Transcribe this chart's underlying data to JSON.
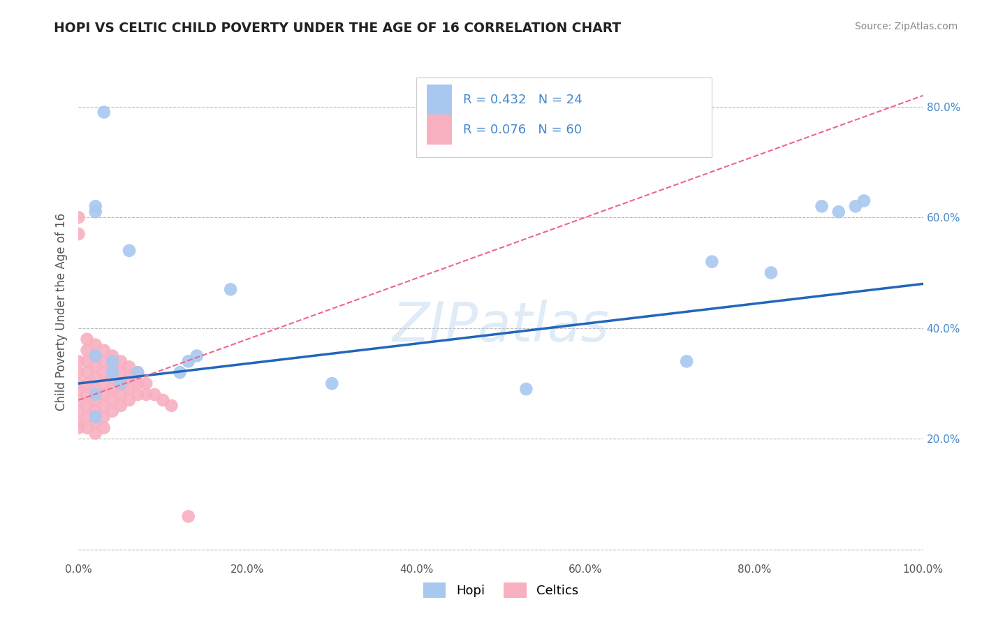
{
  "title": "HOPI VS CELTIC CHILD POVERTY UNDER THE AGE OF 16 CORRELATION CHART",
  "source": "Source: ZipAtlas.com",
  "ylabel": "Child Poverty Under the Age of 16",
  "watermark": "ZIPatlas",
  "hopi_R": "R = 0.432",
  "hopi_N": "N = 24",
  "celtics_R": "R = 0.076",
  "celtics_N": "N = 60",
  "hopi_color": "#a8c8f0",
  "celtics_color": "#f8b0c0",
  "hopi_line_color": "#2266bb",
  "celtics_line_color": "#ee6688",
  "background_color": "#ffffff",
  "grid_color": "#bbbbbb",
  "xlim": [
    0.0,
    1.0
  ],
  "ylim": [
    -0.02,
    0.88
  ],
  "xticks": [
    0.0,
    0.2,
    0.4,
    0.6,
    0.8,
    1.0
  ],
  "yticks": [
    0.0,
    0.2,
    0.4,
    0.6,
    0.8
  ],
  "xticklabels": [
    "0.0%",
    "20.0%",
    "40.0%",
    "60.0%",
    "80.0%",
    "100.0%"
  ],
  "right_yticklabels": [
    "",
    "20.0%",
    "40.0%",
    "60.0%",
    "80.0%"
  ],
  "hopi_x": [
    0.03,
    0.02,
    0.02,
    0.02,
    0.02,
    0.02,
    0.04,
    0.04,
    0.05,
    0.06,
    0.07,
    0.12,
    0.13,
    0.14,
    0.18,
    0.3,
    0.53,
    0.72,
    0.75,
    0.82,
    0.88,
    0.9,
    0.92,
    0.93
  ],
  "hopi_y": [
    0.79,
    0.62,
    0.61,
    0.35,
    0.28,
    0.24,
    0.34,
    0.32,
    0.3,
    0.54,
    0.32,
    0.32,
    0.34,
    0.35,
    0.47,
    0.3,
    0.29,
    0.34,
    0.52,
    0.5,
    0.62,
    0.61,
    0.62,
    0.63
  ],
  "celtics_x": [
    0.0,
    0.0,
    0.0,
    0.0,
    0.0,
    0.0,
    0.0,
    0.0,
    0.0,
    0.0,
    0.01,
    0.01,
    0.01,
    0.01,
    0.01,
    0.01,
    0.01,
    0.01,
    0.01,
    0.02,
    0.02,
    0.02,
    0.02,
    0.02,
    0.02,
    0.02,
    0.02,
    0.02,
    0.03,
    0.03,
    0.03,
    0.03,
    0.03,
    0.03,
    0.03,
    0.03,
    0.04,
    0.04,
    0.04,
    0.04,
    0.04,
    0.04,
    0.05,
    0.05,
    0.05,
    0.05,
    0.05,
    0.06,
    0.06,
    0.06,
    0.06,
    0.07,
    0.07,
    0.07,
    0.08,
    0.08,
    0.09,
    0.1,
    0.11,
    0.13
  ],
  "celtics_y": [
    0.6,
    0.57,
    0.34,
    0.32,
    0.3,
    0.29,
    0.27,
    0.25,
    0.23,
    0.22,
    0.38,
    0.36,
    0.34,
    0.32,
    0.3,
    0.28,
    0.26,
    0.24,
    0.22,
    0.37,
    0.35,
    0.33,
    0.31,
    0.29,
    0.27,
    0.25,
    0.23,
    0.21,
    0.36,
    0.34,
    0.32,
    0.3,
    0.28,
    0.26,
    0.24,
    0.22,
    0.35,
    0.33,
    0.31,
    0.29,
    0.27,
    0.25,
    0.34,
    0.32,
    0.3,
    0.28,
    0.26,
    0.33,
    0.31,
    0.29,
    0.27,
    0.32,
    0.3,
    0.28,
    0.3,
    0.28,
    0.28,
    0.27,
    0.26,
    0.06
  ],
  "hopi_line_x0": 0.0,
  "hopi_line_y0": 0.3,
  "hopi_line_x1": 1.0,
  "hopi_line_y1": 0.48,
  "celtics_line_x0": 0.0,
  "celtics_line_y0": 0.27,
  "celtics_line_x1": 1.0,
  "celtics_line_y1": 0.82
}
